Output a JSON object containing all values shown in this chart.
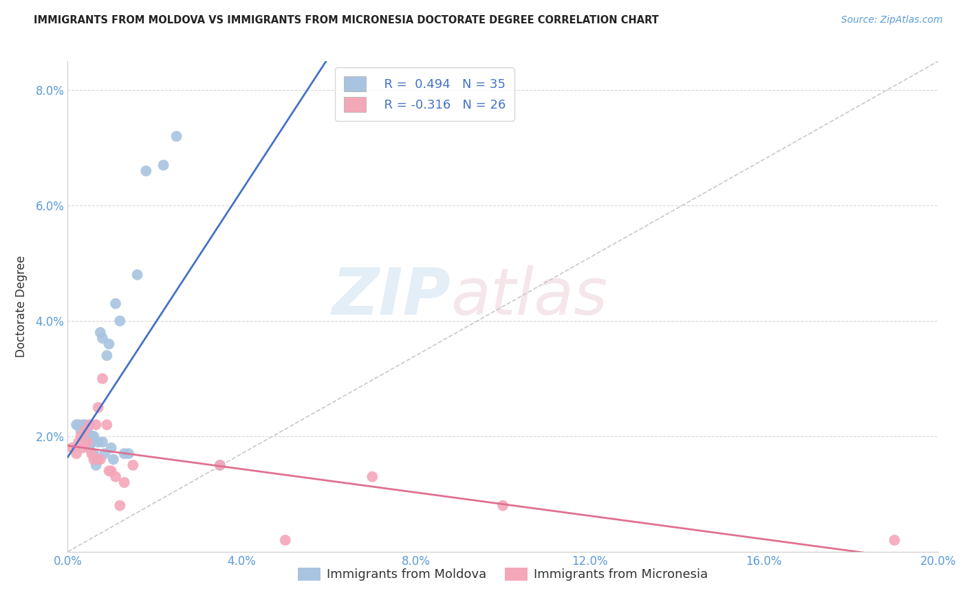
{
  "title": "IMMIGRANTS FROM MOLDOVA VS IMMIGRANTS FROM MICRONESIA DOCTORATE DEGREE CORRELATION CHART",
  "source": "Source: ZipAtlas.com",
  "ylabel": "Doctorate Degree",
  "xlim": [
    0.0,
    20.0
  ],
  "ylim": [
    0.0,
    8.5
  ],
  "xticks": [
    0.0,
    4.0,
    8.0,
    12.0,
    16.0,
    20.0
  ],
  "xtick_labels": [
    "0.0%",
    "4.0%",
    "8.0%",
    "12.0%",
    "16.0%",
    "20.0%"
  ],
  "yticks": [
    0.0,
    2.0,
    4.0,
    6.0,
    8.0
  ],
  "ytick_labels": [
    "",
    "2.0%",
    "4.0%",
    "6.0%",
    "8.0%"
  ],
  "moldova_color": "#a8c4e0",
  "micronesia_color": "#f4a7b9",
  "moldova_line_color": "#4472c4",
  "micronesia_line_color": "#e07090",
  "diagonal_color": "#c8c8c8",
  "legend_R_moldova": "R =  0.494",
  "legend_N_moldova": "N = 35",
  "legend_R_micronesia": "R = -0.316",
  "legend_N_micronesia": "N = 26",
  "moldova_x": [
    0.2,
    0.25,
    0.3,
    0.35,
    0.4,
    0.4,
    0.45,
    0.45,
    0.5,
    0.5,
    0.55,
    0.55,
    0.6,
    0.6,
    0.65,
    0.65,
    0.7,
    0.7,
    0.75,
    0.8,
    0.8,
    0.85,
    0.9,
    0.95,
    1.0,
    1.05,
    1.1,
    1.2,
    1.3,
    1.4,
    1.6,
    1.8,
    2.2,
    2.5,
    3.5
  ],
  "moldova_y": [
    2.2,
    2.2,
    2.1,
    2.2,
    2.0,
    2.2,
    2.0,
    2.1,
    1.9,
    1.8,
    2.0,
    1.9,
    1.7,
    2.0,
    1.6,
    1.5,
    1.9,
    1.6,
    3.8,
    3.7,
    1.9,
    1.7,
    3.4,
    3.6,
    1.8,
    1.6,
    4.3,
    4.0,
    1.7,
    1.7,
    4.8,
    6.6,
    6.7,
    7.2,
    1.5
  ],
  "micronesia_x": [
    0.1,
    0.2,
    0.25,
    0.3,
    0.35,
    0.4,
    0.45,
    0.5,
    0.55,
    0.6,
    0.65,
    0.7,
    0.75,
    0.8,
    0.9,
    0.95,
    1.0,
    1.1,
    1.2,
    1.3,
    1.5,
    3.5,
    5.0,
    7.0,
    10.0,
    19.0
  ],
  "micronesia_y": [
    1.8,
    1.7,
    1.9,
    2.0,
    1.8,
    2.1,
    1.9,
    2.2,
    1.7,
    1.6,
    2.2,
    2.5,
    1.6,
    3.0,
    2.2,
    1.4,
    1.4,
    1.3,
    0.8,
    1.2,
    1.5,
    1.5,
    0.2,
    1.3,
    0.8,
    0.2
  ],
  "watermark_zip": "ZIP",
  "watermark_atlas": "atlas",
  "background_color": "#ffffff",
  "grid_color": "#d8d8d8"
}
